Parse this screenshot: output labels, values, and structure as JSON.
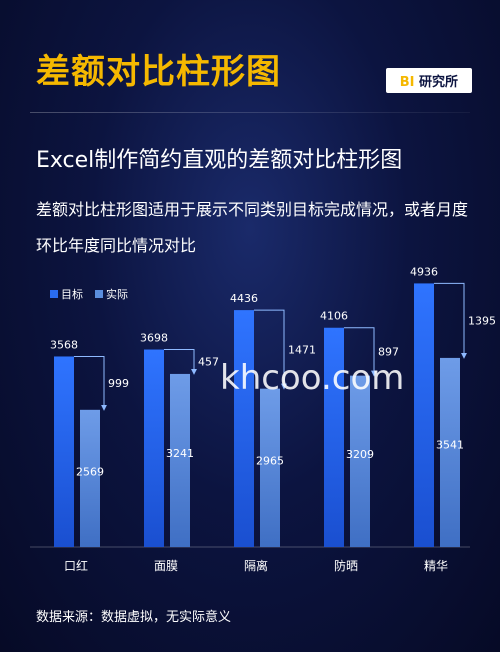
{
  "header": {
    "title": "差额对比柱形图",
    "badge_prefix": "BI",
    "badge_text": "研究所"
  },
  "subtitle": "Excel制作简约直观的差额对比柱形图",
  "description": "差额对比柱形图适用于展示不同类别目标完成情况，或者月度环比年度同比情况对比",
  "source": "数据来源：数据虚拟，无实际意义",
  "watermark": "khcoo.com",
  "chart_data": {
    "type": "bar",
    "categories": [
      "口红",
      "面膜",
      "隔离",
      "防晒",
      "精华"
    ],
    "series": [
      {
        "name": "目标",
        "values": [
          3568,
          3698,
          4436,
          4106,
          4936
        ],
        "color": "#2a6cf0"
      },
      {
        "name": "实际",
        "values": [
          2569,
          3241,
          2965,
          3209,
          3541
        ],
        "color": "#5b8ede"
      }
    ],
    "differences": [
      999,
      457,
      1471,
      897,
      1395
    ],
    "ylim": [
      0,
      5000
    ],
    "grid": false,
    "legend": "top-left",
    "colors": {
      "target": "#2a6cf0",
      "actual": "#5b8ede",
      "arrow": "#7fb0ff"
    }
  }
}
